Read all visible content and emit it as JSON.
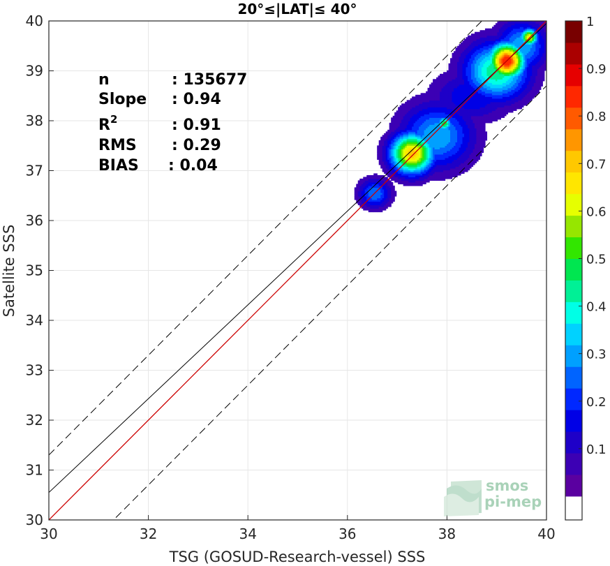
{
  "chart_data": {
    "type": "heatmap",
    "title": "20°≤|LAT|≤ 40°",
    "xlabel": "TSG (GOSUD-Research-vessel) SSS",
    "ylabel": "Satellite SSS",
    "xlim": [
      30,
      40
    ],
    "ylim": [
      30,
      40
    ],
    "xticks": [
      "30",
      "32",
      "34",
      "36",
      "38",
      "40"
    ],
    "yticks": [
      "30",
      "31",
      "32",
      "33",
      "34",
      "35",
      "36",
      "37",
      "38",
      "39",
      "40"
    ],
    "grid": true,
    "colorbar": {
      "range": [
        0,
        1
      ],
      "ticks": [
        "0.1",
        "0.2",
        "0.3",
        "0.4",
        "0.5",
        "0.6",
        "0.7",
        "0.8",
        "0.9",
        "1"
      ],
      "levels": 20,
      "colors": [
        "#ffffff",
        "#5a00a0",
        "#3c00b4",
        "#1e00c8",
        "#0000e6",
        "#0028ff",
        "#0064ff",
        "#00a0ff",
        "#00d2ff",
        "#00ffe6",
        "#00f096",
        "#00e650",
        "#32e600",
        "#96e600",
        "#e6ff00",
        "#ffe600",
        "#ffc800",
        "#ff9600",
        "#ff5a00",
        "#ff2800",
        "#e60000",
        "#aa0000",
        "#780000"
      ]
    },
    "stats": {
      "n": "135677",
      "slope": "0.94",
      "r2": "0.91",
      "rms": "0.29",
      "bias": "0.04"
    },
    "lines": {
      "identity": {
        "x": [
          30,
          40
        ],
        "y": [
          30,
          40
        ],
        "color": "#cc0000"
      },
      "regression": {
        "x": [
          30,
          40
        ],
        "y": [
          30.55,
          39.95
        ],
        "color": "#000000"
      },
      "upper_dashed": {
        "x": [
          30,
          40
        ],
        "y": [
          31.3,
          41.3
        ]
      },
      "lower_dashed": {
        "x": [
          30,
          40
        ],
        "y": [
          28.7,
          38.7
        ]
      }
    },
    "density_blobs": [
      {
        "x": 36.55,
        "y": 36.55,
        "sx": 0.22,
        "sy": 0.2,
        "peak": 0.3
      },
      {
        "x": 37.3,
        "y": 37.35,
        "sx": 0.3,
        "sy": 0.28,
        "peak": 0.78
      },
      {
        "x": 37.8,
        "y": 37.7,
        "sx": 0.5,
        "sy": 0.45,
        "peak": 0.35
      },
      {
        "x": 37.95,
        "y": 37.95,
        "sx": 0.1,
        "sy": 0.1,
        "peak": 0.55
      },
      {
        "x": 38.5,
        "y": 38.5,
        "sx": 0.55,
        "sy": 0.35,
        "peak": 0.2
      },
      {
        "x": 39.2,
        "y": 39.2,
        "sx": 0.25,
        "sy": 0.25,
        "peak": 0.95
      },
      {
        "x": 39.0,
        "y": 39.0,
        "sx": 0.45,
        "sy": 0.4,
        "peak": 0.5
      },
      {
        "x": 39.65,
        "y": 39.68,
        "sx": 0.12,
        "sy": 0.12,
        "peak": 0.72
      },
      {
        "x": 39.5,
        "y": 39.5,
        "sx": 0.35,
        "sy": 0.35,
        "peak": 0.35
      }
    ]
  },
  "labels": {
    "n_label": "n",
    "slope_label": "Slope",
    "r2_label": "R",
    "r2_sup": "2",
    "rms_label": "RMS",
    "bias_label": "BIAS"
  },
  "logo": {
    "line1": "smos",
    "line2": "pi-mep"
  }
}
